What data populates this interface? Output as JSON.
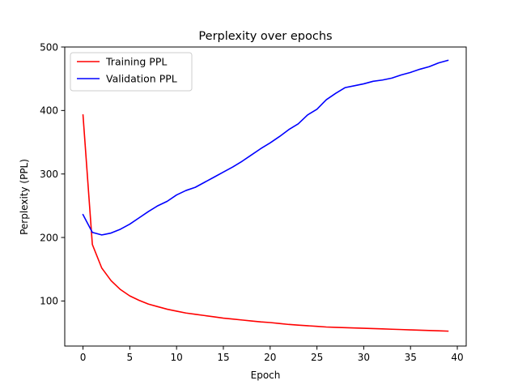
{
  "chart_data": {
    "type": "line",
    "title": "Perplexity over epochs",
    "xlabel": "Epoch",
    "ylabel": "Perplexity (PPL)",
    "xlim": [
      -1.95,
      40.95
    ],
    "ylim": [
      29,
      500
    ],
    "xticks": [
      0,
      5,
      10,
      15,
      20,
      25,
      30,
      35,
      40
    ],
    "yticks": [
      100,
      200,
      300,
      400,
      500
    ],
    "grid": false,
    "legend_position": "top-left",
    "x": [
      0,
      1,
      2,
      3,
      4,
      5,
      6,
      7,
      8,
      9,
      10,
      11,
      12,
      13,
      14,
      15,
      16,
      17,
      18,
      19,
      20,
      21,
      22,
      23,
      24,
      25,
      26,
      27,
      28,
      29,
      30,
      31,
      32,
      33,
      34,
      35,
      36,
      37,
      38,
      39
    ],
    "series": [
      {
        "name": "Training PPL",
        "color": "#ff0000",
        "values": [
          393,
          189,
          152,
          132,
          118,
          108,
          101,
          95,
          91,
          87,
          84,
          81,
          79,
          77,
          75,
          73,
          71.5,
          70,
          68.5,
          67,
          66,
          64.5,
          63,
          62,
          61,
          60,
          59,
          58.5,
          58,
          57.5,
          57,
          56.5,
          56,
          55.5,
          55,
          54.5,
          54,
          53.5,
          53,
          52.5
        ]
      },
      {
        "name": "Validation PPL",
        "color": "#0000ff",
        "values": [
          236,
          208,
          204,
          207,
          213,
          221,
          231,
          241,
          250,
          257,
          267,
          274,
          279,
          287,
          295,
          303,
          311,
          320,
          330,
          340,
          349,
          359,
          370,
          379,
          393,
          402,
          417,
          427,
          436,
          439,
          442,
          446,
          448,
          451,
          456,
          460,
          465,
          469,
          475,
          479
        ]
      }
    ]
  }
}
